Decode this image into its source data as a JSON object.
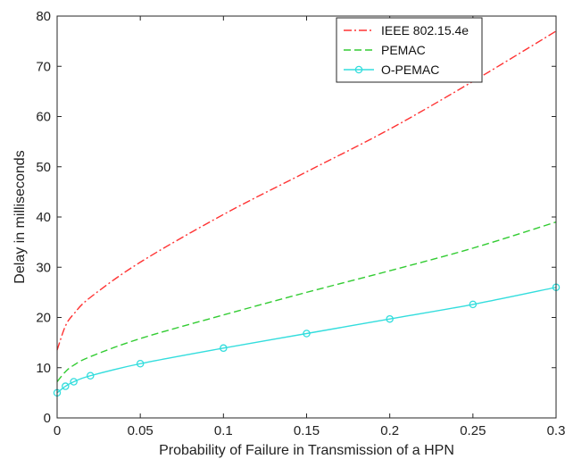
{
  "chart_data": {
    "type": "line",
    "title": "",
    "xlabel": "Probability of Failure in Transmission of a HPN",
    "ylabel": "Delay in milliseconds",
    "xlim": [
      0,
      0.3
    ],
    "ylim": [
      0,
      80
    ],
    "x_ticks": [
      "0",
      "0.05",
      "0.1",
      "0.15",
      "0.2",
      "0.25",
      "0.3"
    ],
    "y_ticks": [
      "0",
      "10",
      "20",
      "30",
      "40",
      "50",
      "60",
      "70",
      "80"
    ],
    "grid": false,
    "legend_position": "top-right",
    "x": [
      0,
      0.005,
      0.01,
      0.02,
      0.05,
      0.1,
      0.15,
      0.2,
      0.25,
      0.3
    ],
    "series": [
      {
        "name": "IEEE 802.15.4e",
        "color": "#ff3333",
        "line_style": "dash-dot",
        "marker": "none",
        "values": [
          13.5,
          18.3,
          20.7,
          24.0,
          31.0,
          40.5,
          49.0,
          57.5,
          67.0,
          77.0
        ]
      },
      {
        "name": "PEMAC",
        "color": "#33cc33",
        "line_style": "dashed",
        "marker": "none",
        "values": [
          7.2,
          9.2,
          10.5,
          12.2,
          15.8,
          20.5,
          25.0,
          29.3,
          33.8,
          39.0
        ]
      },
      {
        "name": "O-PEMAC",
        "color": "#33dddd",
        "line_style": "solid",
        "marker": "circle",
        "values": [
          5.0,
          6.3,
          7.2,
          8.4,
          10.8,
          13.9,
          16.8,
          19.7,
          22.6,
          26.0
        ]
      }
    ]
  }
}
